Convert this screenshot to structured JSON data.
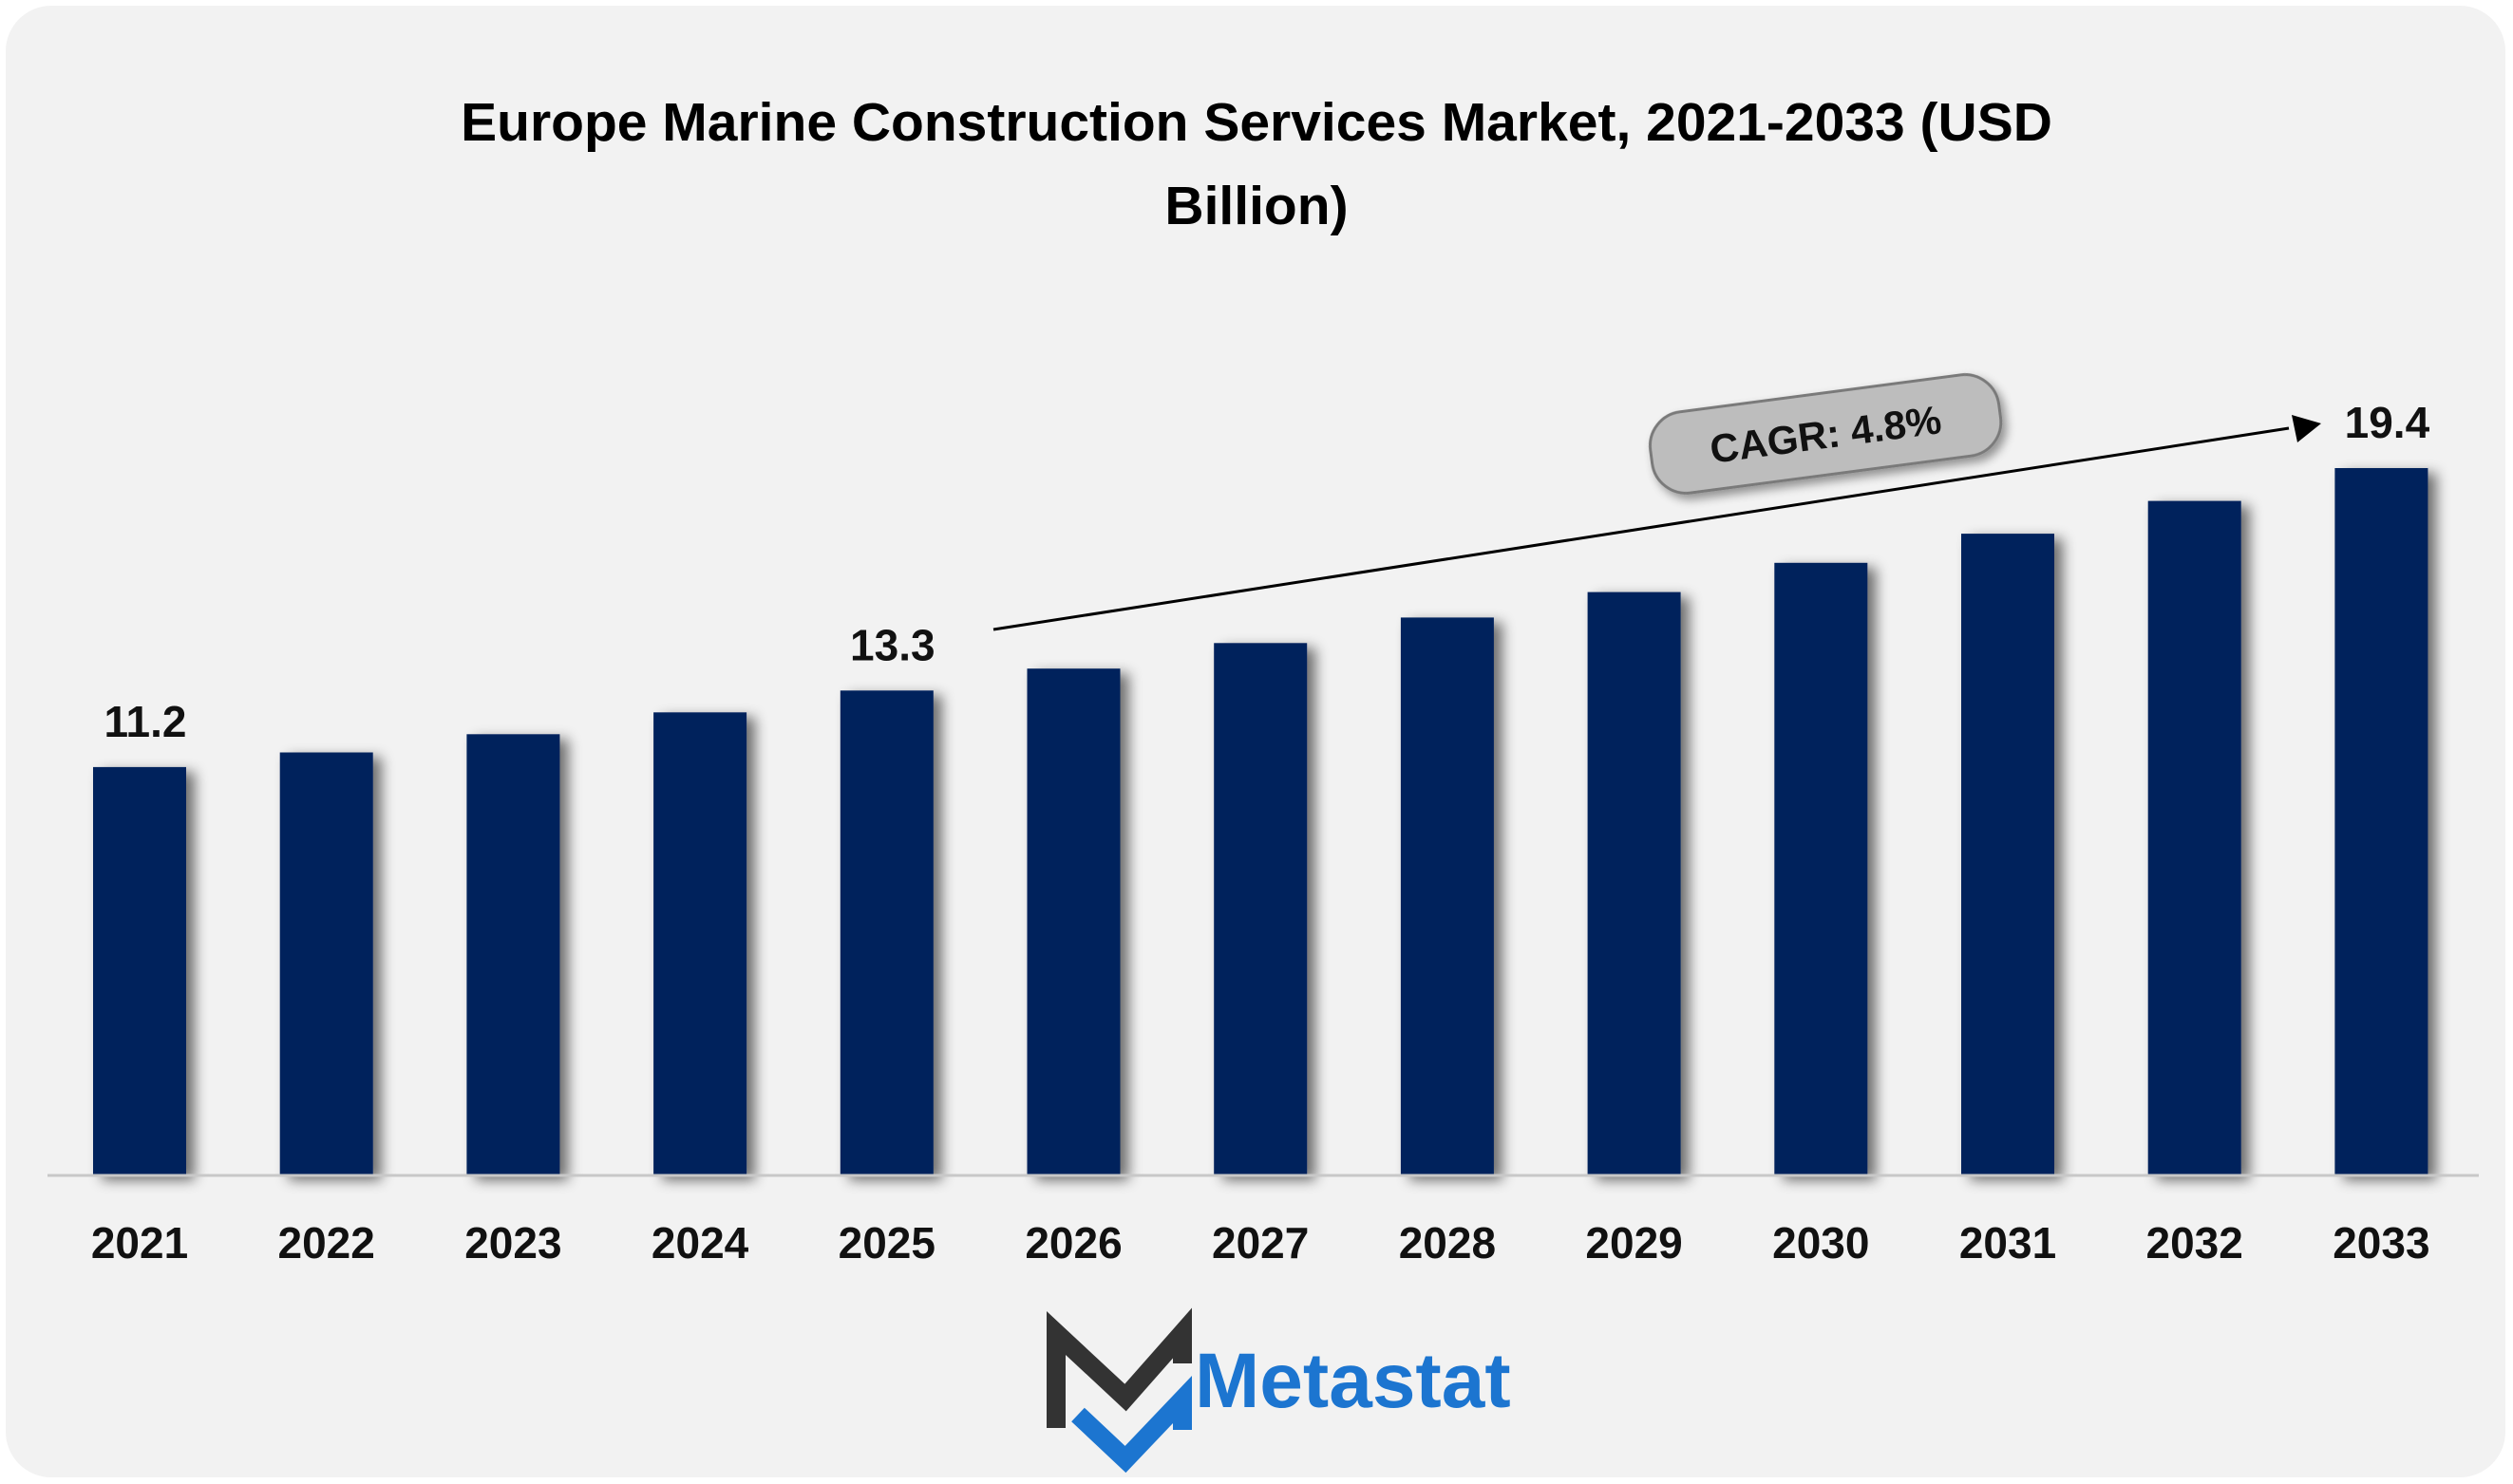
{
  "chart_data": {
    "type": "bar",
    "title_lines": [
      "Europe Marine Construction Services Market, 2021-2033 (USD",
      "Billion)"
    ],
    "categories": [
      "2021",
      "2022",
      "2023",
      "2024",
      "2025",
      "2026",
      "2027",
      "2028",
      "2029",
      "2030",
      "2031",
      "2032",
      "2033"
    ],
    "values": [
      11.2,
      11.6,
      12.1,
      12.7,
      13.3,
      13.9,
      14.6,
      15.3,
      16.0,
      16.8,
      17.6,
      18.5,
      19.4
    ],
    "data_labels": [
      {
        "category": "2021",
        "text": "11.2"
      },
      {
        "category": "2025",
        "text": "13.3"
      },
      {
        "category": "2033",
        "text": "19.4"
      }
    ],
    "annotation": {
      "text": "CAGR: 4.8%"
    },
    "xlabel": "",
    "ylabel": "",
    "ylim": [
      0,
      19.4
    ],
    "grid": false,
    "legend": "none",
    "bar_color": "#03205c"
  },
  "brand": {
    "name": "Metastat",
    "text_color": "#1c75d0",
    "logo_dark": "#333333",
    "logo_blue": "#1c75d0"
  }
}
